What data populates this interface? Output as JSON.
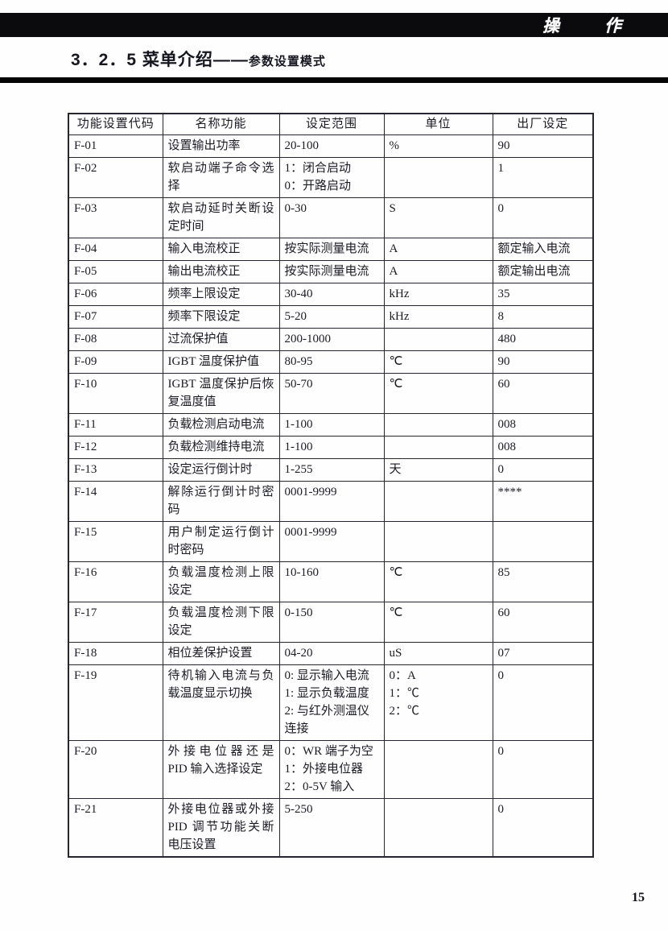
{
  "topbar": {
    "chapter_chars": [
      "操",
      "作"
    ]
  },
  "title": {
    "main": "3．2．5 菜单介绍——",
    "sub": "参数设置模式"
  },
  "table": {
    "columns": [
      "功能设置代码",
      "名称功能",
      "设定范围",
      "单位",
      "出厂设定"
    ],
    "rows": [
      {
        "code": "F-01",
        "name": "设置输出功率",
        "range": "20-100",
        "unit": "%",
        "default": "90"
      },
      {
        "code": "F-02",
        "name": "软启动端子命令选择",
        "range": "1：闭合启动\n0：开路启动",
        "unit": "",
        "default": "1"
      },
      {
        "code": "F-03",
        "name": "软启动延时关断设定时间",
        "range": "0-30",
        "unit": "S",
        "default": "0"
      },
      {
        "code": "F-04",
        "name": "输入电流校正",
        "range": "按实际测量电流",
        "unit": "A",
        "default": "额定输入电流"
      },
      {
        "code": "F-05",
        "name": "输出电流校正",
        "range": "按实际测量电流",
        "unit": "A",
        "default": "额定输出电流"
      },
      {
        "code": "F-06",
        "name": "频率上限设定",
        "range": "30-40",
        "unit": "kHz",
        "default": "35"
      },
      {
        "code": "F-07",
        "name": "频率下限设定",
        "range": "5-20",
        "unit": "kHz",
        "default": "8"
      },
      {
        "code": "F-08",
        "name": "过流保护值",
        "range": "200-1000",
        "unit": "",
        "default": "480"
      },
      {
        "code": "F-09",
        "name": "IGBT 温度保护值",
        "range": "80-95",
        "unit": "℃",
        "default": "90"
      },
      {
        "code": "F-10",
        "name": "IGBT 温度保护后恢复温度值",
        "range": "50-70",
        "unit": "℃",
        "default": "60"
      },
      {
        "code": "F-11",
        "name": "负载检测启动电流",
        "range": "1-100",
        "unit": "",
        "default": "008"
      },
      {
        "code": "F-12",
        "name": "负载检测维持电流",
        "range": "1-100",
        "unit": "",
        "default": "008"
      },
      {
        "code": "F-13",
        "name": "设定运行倒计时",
        "range": "1-255",
        "unit": "天",
        "default": "0"
      },
      {
        "code": "F-14",
        "name": "解除运行倒计时密码",
        "range": "0001-9999",
        "unit": "",
        "default": "****"
      },
      {
        "code": "F-15",
        "name": "用户制定运行倒计时密码",
        "range": "0001-9999",
        "unit": "",
        "default": ""
      },
      {
        "code": "F-16",
        "name": "负载温度检测上限设定",
        "range": "10-160",
        "unit": "℃",
        "default": "85"
      },
      {
        "code": "F-17",
        "name": "负载温度检测下限设定",
        "range": "0-150",
        "unit": "℃",
        "default": "60"
      },
      {
        "code": "F-18",
        "name": "相位差保护设置",
        "range": "04-20",
        "unit": "uS",
        "default": "07"
      },
      {
        "code": "F-19",
        "name": "待机输入电流与负载温度显示切换",
        "range": "0: 显示输入电流\n1: 显示负载温度\n2: 与红外测温仪连接",
        "unit": "0：A\n1：℃\n2：℃",
        "default": "0"
      },
      {
        "code": "F-20",
        "name": "外接电位器还是 PID 输入选择设定",
        "range": "0：WR 端子为空\n1：外接电位器\n2：0-5V 输入",
        "unit": "",
        "default": "0"
      },
      {
        "code": "F-21",
        "name": "外接电位器或外接 PID 调节功能关断电压设置",
        "range": "5-250",
        "unit": "",
        "default": "0"
      }
    ]
  },
  "footer": {
    "page_number": "15"
  },
  "colors": {
    "bar_background": "#0b0b0d",
    "bar_text": "#ffffff",
    "body_text": "#1b1b26",
    "table_border": "#26262e"
  }
}
